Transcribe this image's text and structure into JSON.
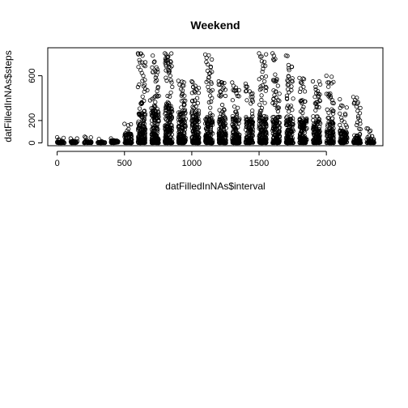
{
  "chart_data": {
    "type": "scatter",
    "title": "Weekend",
    "xlabel": "datFilledInNAs$interval",
    "ylabel": "datFilledInNAs$steps",
    "xlim": [
      -70,
      2420
    ],
    "ylim": [
      -25,
      850
    ],
    "x_ticks": [
      0,
      500,
      1000,
      1500,
      2000
    ],
    "y_ticks": [
      0,
      200,
      600
    ],
    "grid": false,
    "legend": "none",
    "marker": "open-circle",
    "marker_color": "#000000",
    "x_groups": [
      0,
      100,
      200,
      300,
      400,
      500,
      600,
      700,
      800,
      900,
      1000,
      1100,
      1200,
      1300,
      1400,
      1500,
      1600,
      1700,
      1800,
      1900,
      2000,
      2100,
      2200,
      2300
    ],
    "group_max_steps": [
      50,
      40,
      55,
      35,
      40,
      170,
      800,
      790,
      800,
      555,
      550,
      790,
      550,
      540,
      530,
      800,
      800,
      780,
      580,
      550,
      600,
      390,
      410,
      130
    ],
    "group_typical_steps": [
      10,
      10,
      10,
      5,
      15,
      60,
      180,
      190,
      210,
      180,
      180,
      150,
      150,
      140,
      140,
      150,
      150,
      150,
      140,
      140,
      120,
      70,
      50,
      25
    ],
    "series": [
      {
        "points": [
          [
            0,
            50
          ],
          [
            10,
            30
          ],
          [
            40,
            10
          ],
          [
            100,
            40
          ],
          [
            120,
            20
          ],
          [
            205,
            55
          ],
          [
            220,
            25
          ],
          [
            310,
            35
          ],
          [
            330,
            15
          ],
          [
            400,
            40
          ],
          [
            430,
            20
          ],
          [
            500,
            170
          ],
          [
            520,
            110
          ],
          [
            600,
            800
          ],
          [
            610,
            740
          ],
          [
            620,
            650
          ],
          [
            640,
            600
          ],
          [
            650,
            520
          ],
          [
            670,
            470
          ],
          [
            690,
            380
          ],
          [
            700,
            310
          ],
          [
            710,
            780
          ],
          [
            720,
            720
          ],
          [
            730,
            640
          ],
          [
            740,
            560
          ],
          [
            750,
            500
          ],
          [
            755,
            420
          ],
          [
            800,
            800
          ],
          [
            810,
            790
          ],
          [
            815,
            770
          ],
          [
            820,
            740
          ],
          [
            825,
            720
          ],
          [
            830,
            680
          ],
          [
            835,
            640
          ],
          [
            840,
            600
          ],
          [
            845,
            560
          ],
          [
            850,
            540
          ],
          [
            855,
            500
          ],
          [
            845,
            450
          ],
          [
            820,
            420
          ],
          [
            900,
            555
          ],
          [
            910,
            520
          ],
          [
            920,
            480
          ],
          [
            930,
            440
          ],
          [
            940,
            380
          ],
          [
            1000,
            550
          ],
          [
            1010,
            500
          ],
          [
            1020,
            460
          ],
          [
            1040,
            400
          ],
          [
            1100,
            790
          ],
          [
            1110,
            760
          ],
          [
            1120,
            500
          ],
          [
            1140,
            460
          ],
          [
            1150,
            400
          ],
          [
            1200,
            550
          ],
          [
            1210,
            520
          ],
          [
            1230,
            480
          ],
          [
            1250,
            420
          ],
          [
            1300,
            540
          ],
          [
            1310,
            510
          ],
          [
            1330,
            470
          ],
          [
            1340,
            420
          ],
          [
            1400,
            530
          ],
          [
            1410,
            500
          ],
          [
            1430,
            460
          ],
          [
            1440,
            410
          ],
          [
            1500,
            800
          ],
          [
            1510,
            770
          ],
          [
            1520,
            730
          ],
          [
            1530,
            690
          ],
          [
            1540,
            550
          ],
          [
            1550,
            500
          ],
          [
            1600,
            800
          ],
          [
            1610,
            780
          ],
          [
            1620,
            750
          ],
          [
            1630,
            560
          ],
          [
            1640,
            510
          ],
          [
            1700,
            780
          ],
          [
            1710,
            560
          ],
          [
            1720,
            520
          ],
          [
            1740,
            470
          ],
          [
            1800,
            580
          ],
          [
            1810,
            540
          ],
          [
            1830,
            500
          ],
          [
            1840,
            460
          ],
          [
            1900,
            550
          ],
          [
            1920,
            500
          ],
          [
            1940,
            440
          ],
          [
            1950,
            380
          ],
          [
            2000,
            600
          ],
          [
            2010,
            540
          ],
          [
            2030,
            400
          ],
          [
            2040,
            300
          ],
          [
            2100,
            390
          ],
          [
            2120,
            330
          ],
          [
            2140,
            260
          ],
          [
            2200,
            410
          ],
          [
            2230,
            350
          ],
          [
            2250,
            200
          ],
          [
            2300,
            130
          ],
          [
            2320,
            100
          ],
          [
            2340,
            60
          ]
        ]
      }
    ]
  }
}
